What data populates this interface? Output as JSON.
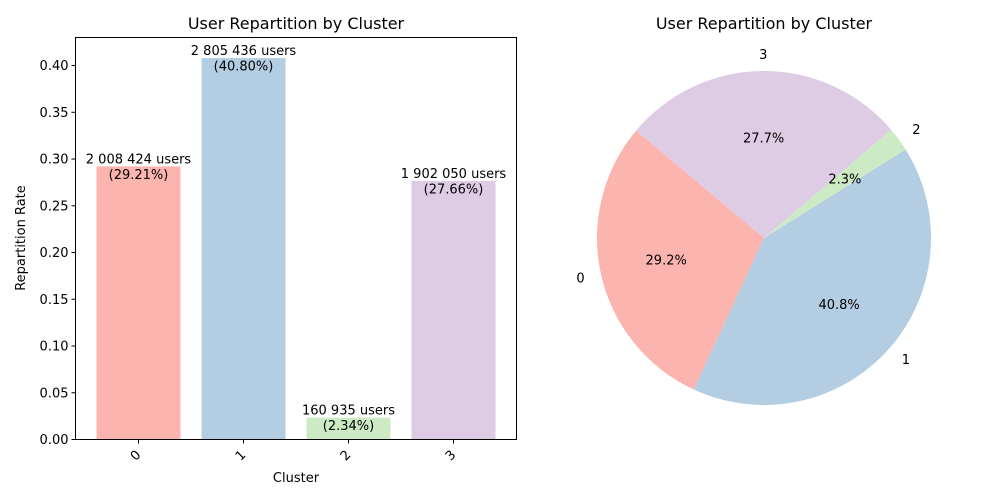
{
  "chart_data": [
    {
      "type": "bar",
      "title": "User Repartition by Cluster",
      "xlabel": "Cluster",
      "ylabel": "Repartition Rate",
      "categories": [
        "0",
        "1",
        "2",
        "3"
      ],
      "values": [
        0.2921,
        0.408,
        0.0234,
        0.2766
      ],
      "ylim": [
        0,
        0.43
      ],
      "yticks": [
        "0.00",
        "0.05",
        "0.10",
        "0.15",
        "0.20",
        "0.25",
        "0.30",
        "0.35",
        "0.40"
      ],
      "bar_labels": [
        [
          "2 008 424 users",
          "(29.21%)"
        ],
        [
          "2 805 436 users",
          "(40.80%)"
        ],
        [
          "160 935 users",
          "(2.34%)"
        ],
        [
          "1 902 050 users",
          "(27.66%)"
        ]
      ],
      "colors": [
        "#fbb4ae",
        "#b3cde3",
        "#ccebc5",
        "#decbe4"
      ],
      "grid": false,
      "xtick_rotation": "45°"
    },
    {
      "type": "pie",
      "title": "User Repartition by Cluster",
      "labels": [
        "0",
        "1",
        "2",
        "3"
      ],
      "values": [
        29.21,
        40.8,
        2.34,
        27.66
      ],
      "pct_labels": [
        "29.2%",
        "40.8%",
        "2.3%",
        "27.7%"
      ],
      "colors": [
        "#fbb4ae",
        "#b3cde3",
        "#ccebc5",
        "#decbe4"
      ],
      "start_angle": 140,
      "direction": "counterclockwise"
    }
  ]
}
